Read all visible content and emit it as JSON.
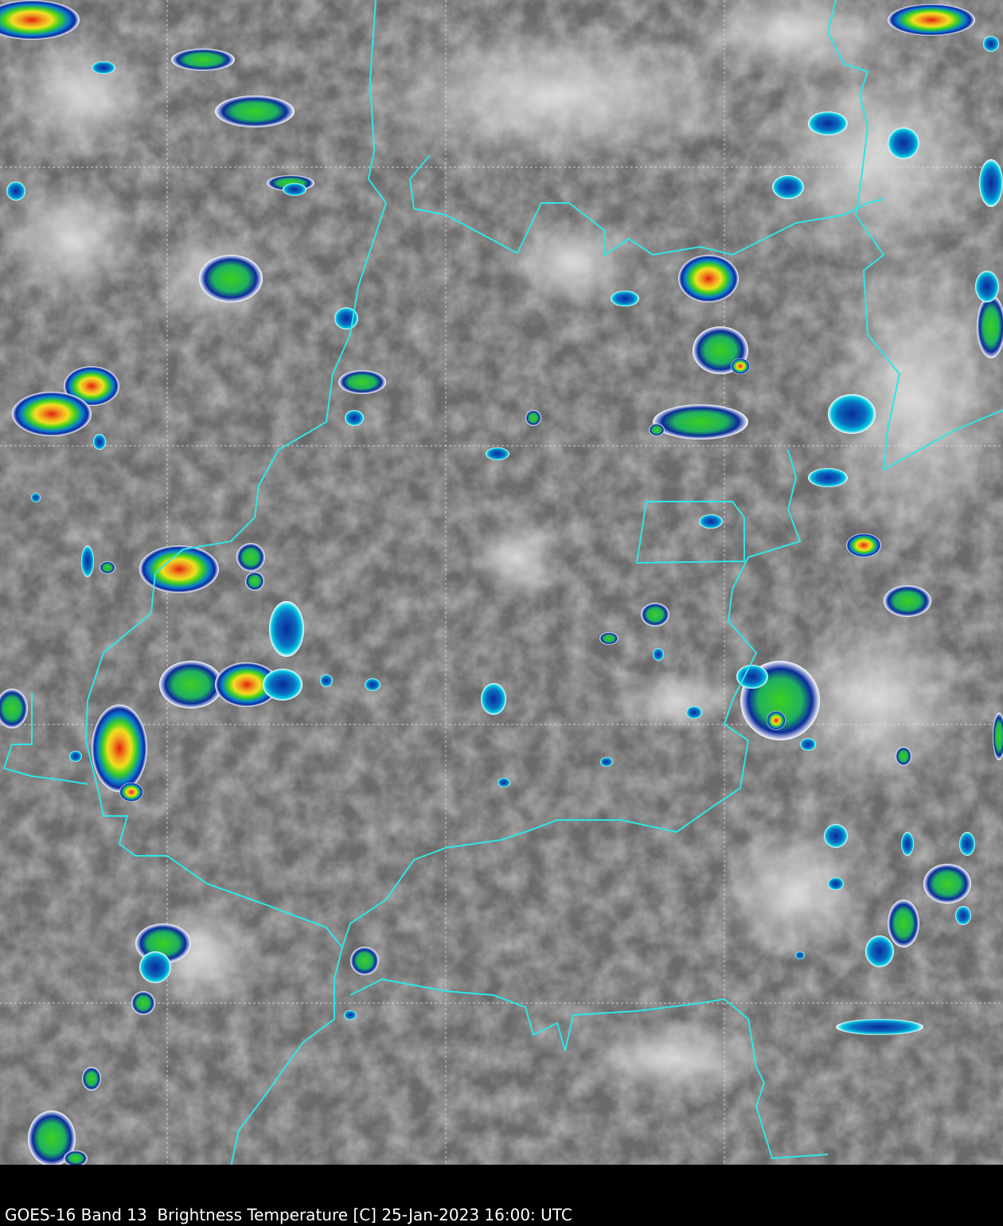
{
  "caption": "GOES-16 Band 13  Brightness Temperature [C] 25-Jan-2023 16:00: UTC",
  "map": {
    "type": "satellite infrared brightness temperature",
    "colors": {
      "background_gray": "#6e6e6e",
      "border": "#2ee6e6",
      "grid": "#e0e0e0",
      "cold_blue": "#0a2a9a",
      "cyan": "#00c8e0",
      "green": "#3cd020",
      "yellow": "#f0e020",
      "red": "#e02010"
    }
  }
}
